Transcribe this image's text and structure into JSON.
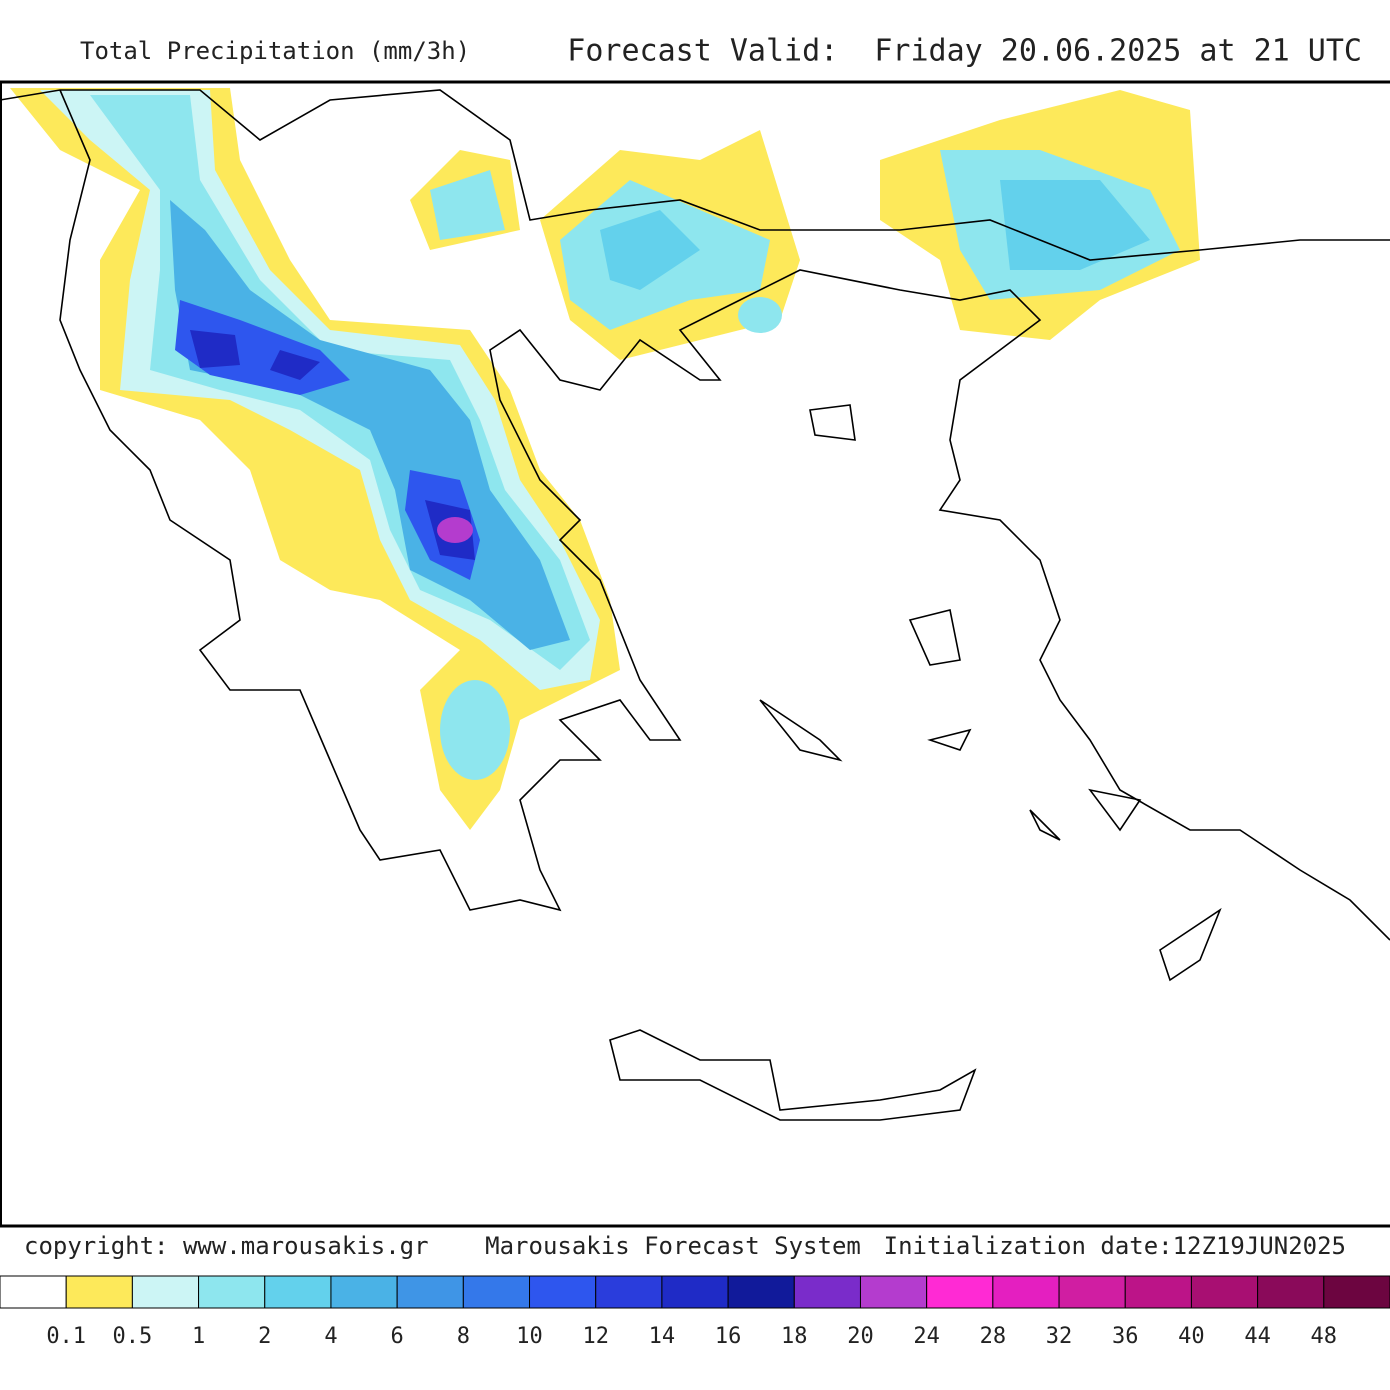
{
  "header": {
    "title": "Total Precipitation (mm/3h)",
    "forecast": "Forecast Valid:  Friday 20.06.2025 at 21 UTC"
  },
  "footer": {
    "copyright": "copyright: www.marousakis.gr",
    "system": "Marousakis Forecast System",
    "initialization": "Initialization date:12Z19JUN2025"
  },
  "legend": {
    "colors": [
      "#ffffff",
      "#fde95a",
      "#ccf5f5",
      "#8ee6ee",
      "#63d1ec",
      "#4ab2e6",
      "#3f95e6",
      "#3478ea",
      "#2e56ee",
      "#2a3ddc",
      "#1f2bc6",
      "#111a9a",
      "#7a2cca",
      "#b43cce",
      "#ff2ad4",
      "#e41fc0",
      "#d01ea2",
      "#bc1488",
      "#a80f72",
      "#8a0a5a",
      "#6c0540"
    ],
    "labels": [
      0.1,
      0.5,
      1,
      2,
      4,
      6,
      8,
      10,
      12,
      14,
      16,
      18,
      20,
      24,
      28,
      32,
      36,
      40,
      44,
      48
    ]
  }
}
